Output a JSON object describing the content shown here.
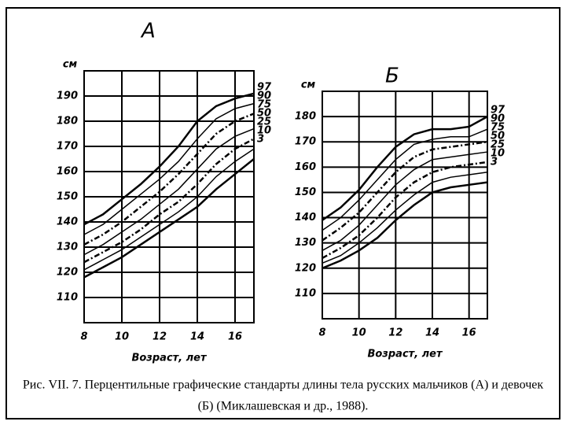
{
  "chart_data": [
    {
      "type": "line",
      "title": "А",
      "ylabel": "см",
      "xlabel": "Возраст, лет",
      "x": [
        8,
        9,
        10,
        11,
        12,
        13,
        14,
        15,
        16,
        17
      ],
      "xlim": [
        8,
        17
      ],
      "xticks": [
        8,
        10,
        12,
        14,
        16
      ],
      "ylim": [
        100,
        200
      ],
      "yticks": [
        110,
        120,
        130,
        140,
        150,
        160,
        170,
        180,
        190
      ],
      "grid": true,
      "series": [
        {
          "name": "97",
          "color": "#000000",
          "values": [
            139,
            143,
            149,
            155,
            162,
            170,
            180,
            186,
            189,
            191
          ]
        },
        {
          "name": "90",
          "color": "#000000",
          "values": [
            135,
            139,
            145,
            151,
            157,
            164,
            173,
            181,
            185,
            187
          ]
        },
        {
          "name": "75",
          "color": "#000000",
          "values": [
            131,
            135,
            140,
            146,
            152,
            159,
            167,
            175,
            180,
            183
          ]
        },
        {
          "name": "50",
          "color": "#000000",
          "values": [
            127,
            131,
            136,
            141,
            147,
            153,
            161,
            169,
            174,
            177
          ]
        },
        {
          "name": "25",
          "color": "#000000",
          "values": [
            124,
            128,
            132,
            137,
            143,
            148,
            155,
            163,
            169,
            173
          ]
        },
        {
          "name": "10",
          "color": "#000000",
          "values": [
            121,
            125,
            129,
            134,
            139,
            144,
            150,
            158,
            164,
            169
          ]
        },
        {
          "name": "3",
          "color": "#000000",
          "values": [
            118,
            122,
            126,
            131,
            136,
            141,
            146,
            153,
            159,
            165
          ]
        }
      ]
    },
    {
      "type": "line",
      "title": "Б",
      "ylabel": "см",
      "xlabel": "Возраст, лет",
      "x": [
        8,
        9,
        10,
        11,
        12,
        13,
        14,
        15,
        16,
        17
      ],
      "xlim": [
        8,
        17
      ],
      "xticks": [
        8,
        10,
        12,
        14,
        16
      ],
      "ylim": [
        100,
        190
      ],
      "yticks": [
        110,
        120,
        130,
        140,
        150,
        160,
        170,
        180
      ],
      "grid": true,
      "series": [
        {
          "name": "97",
          "color": "#000000",
          "values": [
            139,
            144,
            151,
            160,
            168,
            173,
            175,
            175,
            176,
            180
          ]
        },
        {
          "name": "90",
          "color": "#000000",
          "values": [
            135,
            140,
            147,
            155,
            163,
            169,
            171,
            172,
            172,
            175
          ]
        },
        {
          "name": "75",
          "color": "#000000",
          "values": [
            131,
            136,
            142,
            150,
            158,
            164,
            167,
            168,
            169,
            170
          ]
        },
        {
          "name": "50",
          "color": "#000000",
          "values": [
            127,
            131,
            137,
            145,
            153,
            159,
            163,
            164,
            165,
            166
          ]
        },
        {
          "name": "25",
          "color": "#000000",
          "values": [
            124,
            128,
            133,
            140,
            148,
            154,
            158,
            160,
            161,
            162
          ]
        },
        {
          "name": "10",
          "color": "#000000",
          "values": [
            122,
            125,
            130,
            136,
            143,
            149,
            154,
            156,
            157,
            158
          ]
        },
        {
          "name": "3",
          "color": "#000000",
          "values": [
            120,
            123,
            127,
            132,
            139,
            145,
            150,
            152,
            153,
            154
          ]
        }
      ]
    }
  ],
  "caption": [
    "Рис. VII. 7. Перцентильные графические стандарты длины тела русских мальчиков (А) и девочек",
    "(Б) (Миклашевская и др., 1988)."
  ]
}
